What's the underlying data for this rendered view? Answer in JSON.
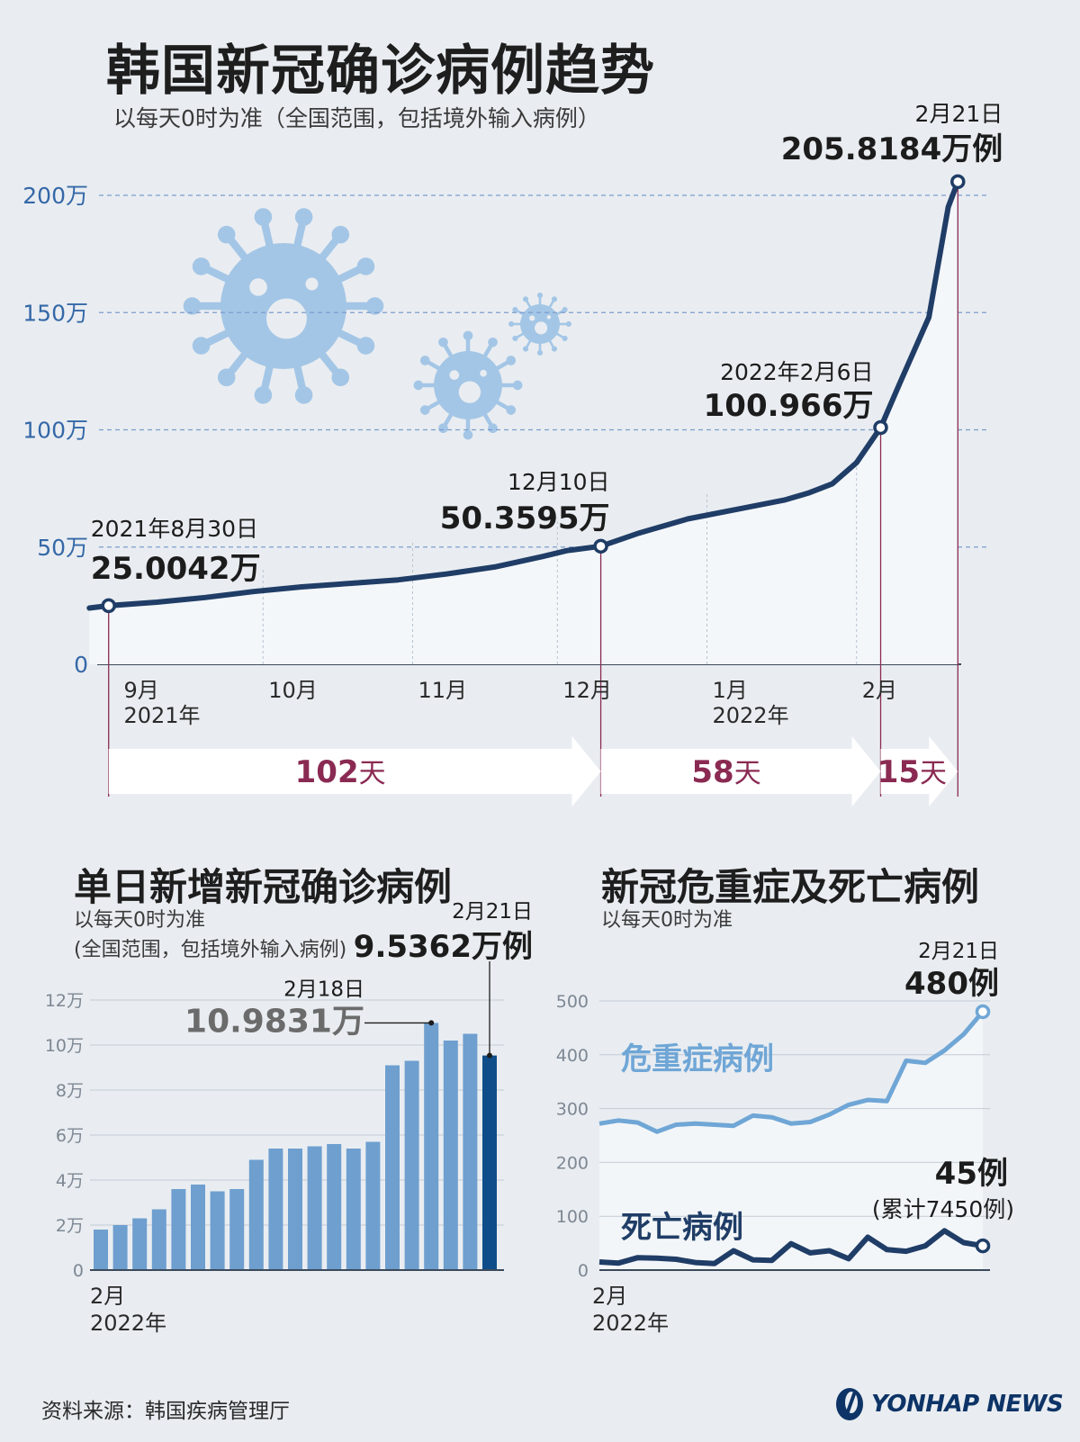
{
  "title": "韩国新冠确诊病例趋势",
  "subtitle": "以每天0时为准（全国范围，包括境外输入病例）",
  "colors": {
    "navy": "#1f3d66",
    "axis_blue": "#3568a8",
    "bar": "#6e9fcf",
    "bar_last": "#0f4d8a",
    "critical": "#6fa6d6",
    "death": "#1f3d66",
    "days": "#8a2a52",
    "virus": "#a4c6e6"
  },
  "chart_data": [
    {
      "type": "line",
      "title": "韩国新冠确诊病例趋势",
      "y_ticks": [
        "0",
        "50万",
        "100万",
        "150万",
        "200万"
      ],
      "y_tick_values": [
        0,
        50,
        100,
        150,
        200
      ],
      "ylim": [
        0,
        200
      ],
      "x_ticks": [
        {
          "label": "9月",
          "year": "2021年",
          "x": 2
        },
        {
          "label": "10月",
          "year": "",
          "x": 32
        },
        {
          "label": "11月",
          "year": "",
          "x": 63
        },
        {
          "label": "12月",
          "year": "",
          "x": 93
        },
        {
          "label": "1月",
          "year": "2022年",
          "x": 124
        },
        {
          "label": "2月",
          "year": "",
          "x": 155
        }
      ],
      "xlim": [
        -2,
        178
      ],
      "series": [
        {
          "x": [
            -4,
            0,
            10,
            20,
            30,
            40,
            50,
            60,
            70,
            80,
            90,
            95,
            102,
            110,
            120,
            130,
            140,
            145,
            150,
            155,
            160,
            164,
            170,
            174,
            176
          ],
          "values": [
            24,
            25.0042,
            26.5,
            28.5,
            31,
            33,
            34.5,
            36,
            38.5,
            41.5,
            46,
            48.5,
            50.3595,
            56,
            62,
            66,
            70,
            73,
            77,
            86,
            100.966,
            120,
            148,
            195,
            205.8184
          ]
        }
      ],
      "annotations": [
        {
          "date": "2021年8月30日",
          "value": "25.0042万",
          "x": 0,
          "y": 25.0042
        },
        {
          "date": "12月10日",
          "value": "50.3595万",
          "x": 102,
          "y": 50.3595
        },
        {
          "date": "2022年2月6日",
          "value": "100.966万",
          "x": 160,
          "y": 100.966
        },
        {
          "date": "2月21日",
          "value": "205.8184万例",
          "x": 176,
          "y": 205.8184
        }
      ],
      "intervals": [
        {
          "num": "102",
          "unit": "天",
          "from": 0,
          "to": 102
        },
        {
          "num": "58",
          "unit": "天",
          "from": 102,
          "to": 160
        },
        {
          "num": "15",
          "unit": "天",
          "from": 160,
          "to": 176
        }
      ]
    },
    {
      "type": "bar",
      "title": "单日新增新冠确诊病例",
      "subtitle_lines": [
        "以每天0时为准",
        "(全国范围，包括境外输入病例)"
      ],
      "y_ticks": [
        "0",
        "2万",
        "4万",
        "6万",
        "8万",
        "10万",
        "12万"
      ],
      "ylim": [
        0,
        12
      ],
      "values": [
        1.8,
        2.0,
        2.3,
        2.7,
        3.6,
        3.8,
        3.5,
        3.6,
        4.9,
        5.4,
        5.4,
        5.5,
        5.6,
        5.4,
        5.7,
        9.1,
        9.3,
        10.9831,
        10.2,
        10.5,
        9.5362
      ],
      "xlabel": "2月",
      "xyear": "2022年",
      "annotations": [
        {
          "date": "2月18日",
          "value": "10.9831万",
          "index": 17
        },
        {
          "date": "2月21日",
          "value": "9.5362万例",
          "index": 20
        }
      ]
    },
    {
      "type": "line",
      "title": "新冠危重症及死亡病例",
      "subtitle_lines": [
        "以每天0时为准"
      ],
      "y_ticks": [
        "0",
        "100",
        "200",
        "300",
        "400",
        "500"
      ],
      "ylim": [
        0,
        500
      ],
      "xlabel": "2月",
      "xyear": "2022年",
      "series": [
        {
          "name": "危重症病例",
          "values": [
            272,
            278,
            274,
            257,
            270,
            272,
            270,
            268,
            287,
            284,
            272,
            275,
            289,
            307,
            316,
            314,
            389,
            385,
            408,
            438,
            480
          ]
        },
        {
          "name": "死亡病例",
          "values": [
            15,
            13,
            23,
            22,
            20,
            14,
            12,
            36,
            19,
            18,
            49,
            32,
            36,
            21,
            61,
            38,
            35,
            45,
            73,
            51,
            45
          ]
        }
      ],
      "annotations": [
        {
          "date": "2月21日",
          "value": "480例",
          "series": 0
        },
        {
          "value": "45例",
          "note": "(累计7450例)",
          "series": 1
        }
      ]
    }
  ],
  "source": "资料来源：韩国疾病管理厅",
  "logo": "YONHAP NEWS"
}
